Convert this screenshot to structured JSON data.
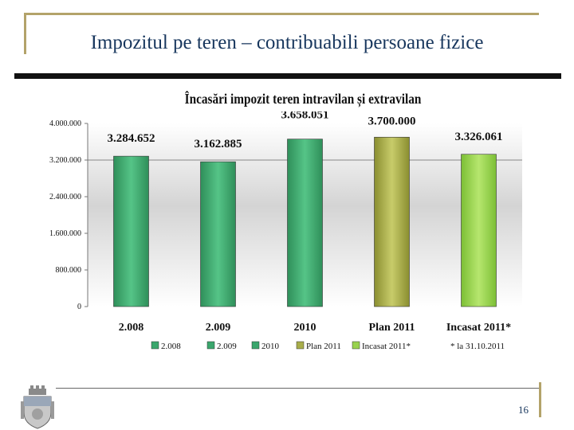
{
  "slide": {
    "title": "Impozitul pe teren – contribuabili persoane fizice",
    "page_number": "16",
    "footnote": "* la 31.10.2011"
  },
  "colors": {
    "frame": "#b3a36a",
    "title_text": "#17365d",
    "bar_green": "#3aa66c",
    "bar_olive": "#a8ad4a",
    "bar_lightgreen": "#98d24e"
  },
  "chart_data": {
    "type": "bar",
    "title": "Încasări impozit teren intravilan și extravilan",
    "categories": [
      "2.008",
      "2.009",
      "2010",
      "Plan 2011",
      "Incasat 2011*"
    ],
    "values": [
      3284652,
      3162885,
      3658051,
      3700000,
      3326061
    ],
    "value_labels": [
      "3.284.652",
      "3.162.885",
      "3.658.051",
      "3.700.000",
      "3.326.061"
    ],
    "ylim": [
      0,
      4000000
    ],
    "yticks": [
      0,
      800000,
      1600000,
      2400000,
      3200000,
      4000000
    ],
    "ytick_labels": [
      "0",
      "800.000",
      "1.600.000",
      "2.400.000",
      "3.200.000",
      "4.000.000"
    ],
    "legend": [
      "2.008",
      "2.009",
      "2010",
      "Plan 2011",
      "Incasat 2011*"
    ],
    "legend_position": "bottom",
    "grid": false
  }
}
